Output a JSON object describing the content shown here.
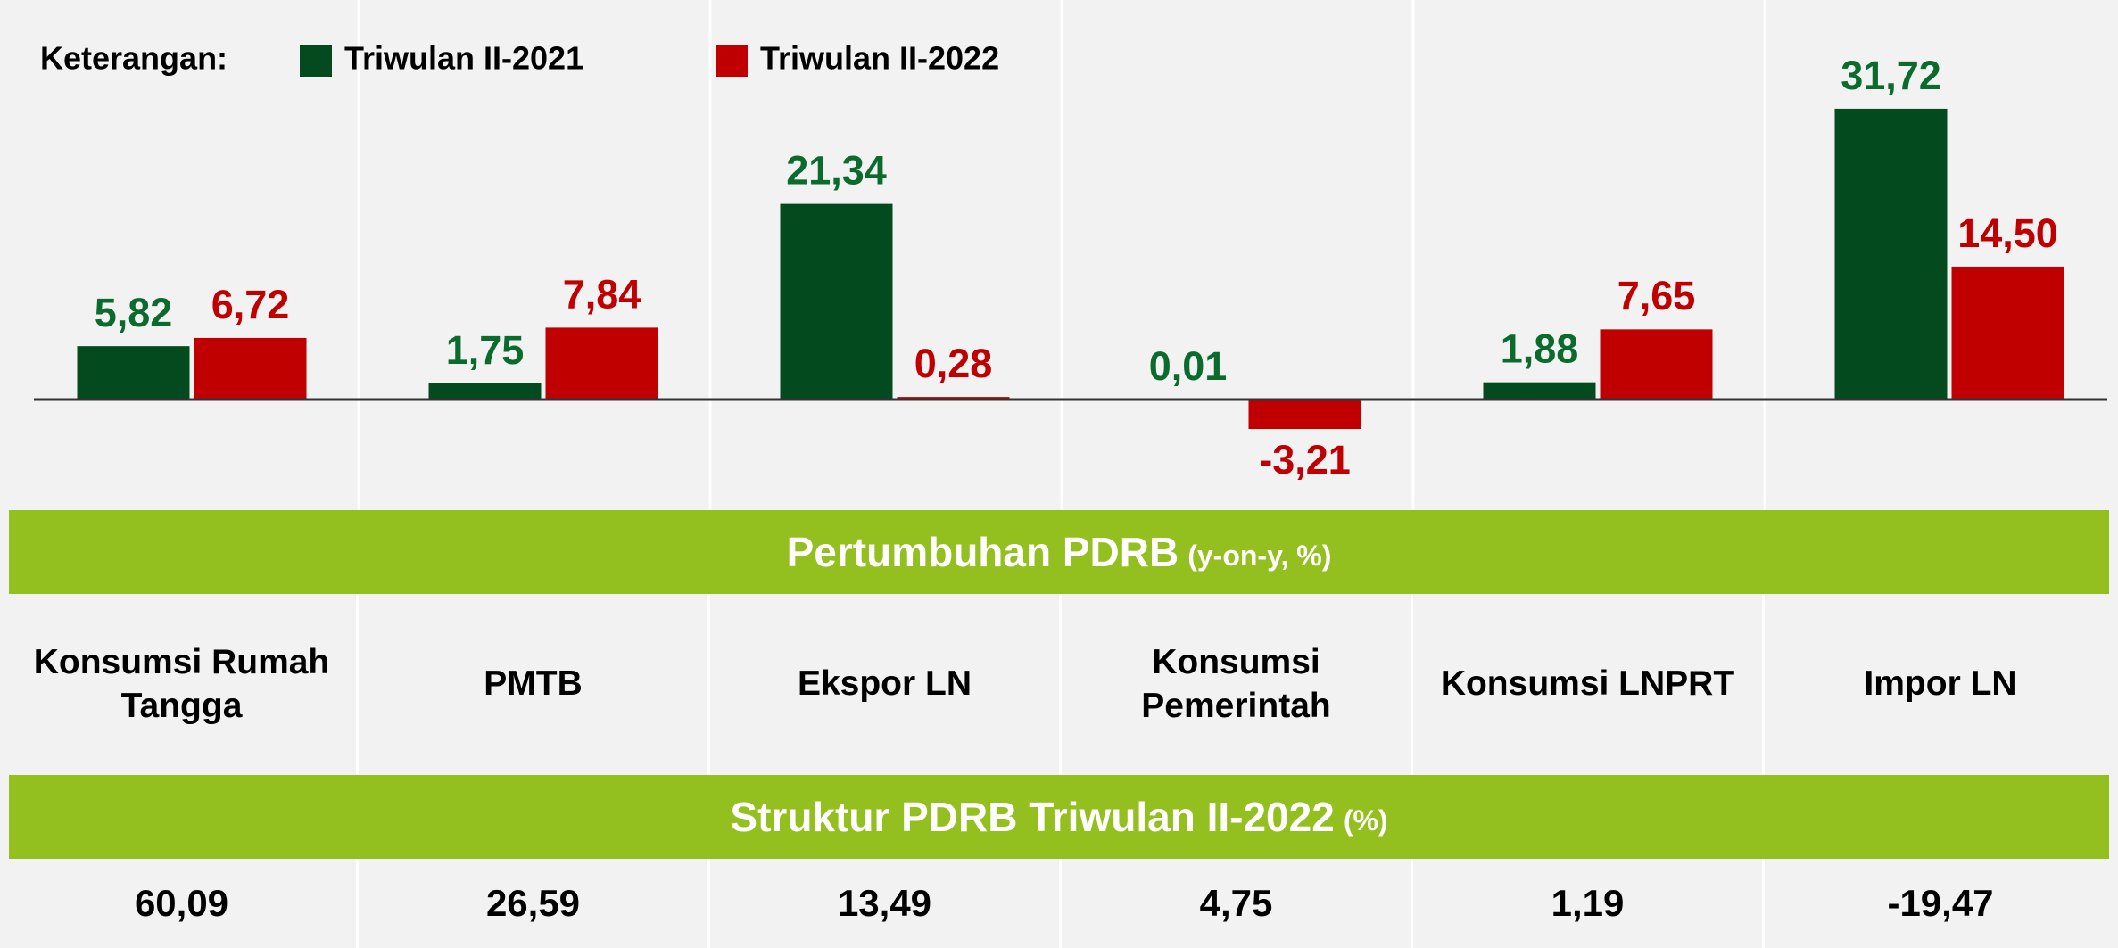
{
  "chart_data": {
    "type": "bar",
    "legend_title": "Keterangan:",
    "categories": [
      "Konsumsi Rumah Tangga",
      "PMTB",
      "Ekspor LN",
      "Konsumsi Pemerintah",
      "Konsumsi LNPRT",
      "Impor LN"
    ],
    "series": [
      {
        "name": "Triwulan II-2021",
        "color": "#034a1e",
        "label_color": "#0a6b2d",
        "values": [
          5.82,
          1.75,
          21.34,
          0.01,
          1.88,
          31.72
        ],
        "value_labels": [
          "5,82",
          "1,75",
          "21,34",
          "0,01",
          "1,88",
          "31,72"
        ]
      },
      {
        "name": "Triwulan II-2022",
        "color": "#c00000",
        "label_color": "#c00000",
        "values": [
          6.72,
          7.84,
          0.28,
          -3.21,
          7.65,
          14.5
        ],
        "value_labels": [
          "6,72",
          "7,84",
          "0,28",
          "-3,21",
          "7,65",
          "14,50"
        ]
      }
    ],
    "growth_banner": {
      "title": "Pertumbuhan PDRB",
      "unit": "(y-on-y, %)"
    },
    "structure_banner": {
      "title": "Struktur PDRB Triwulan II-2022",
      "unit": "(%)"
    },
    "structure_values": [
      "60,09",
      "26,59",
      "13,49",
      "4,75",
      "1,19",
      "-19,47"
    ]
  }
}
